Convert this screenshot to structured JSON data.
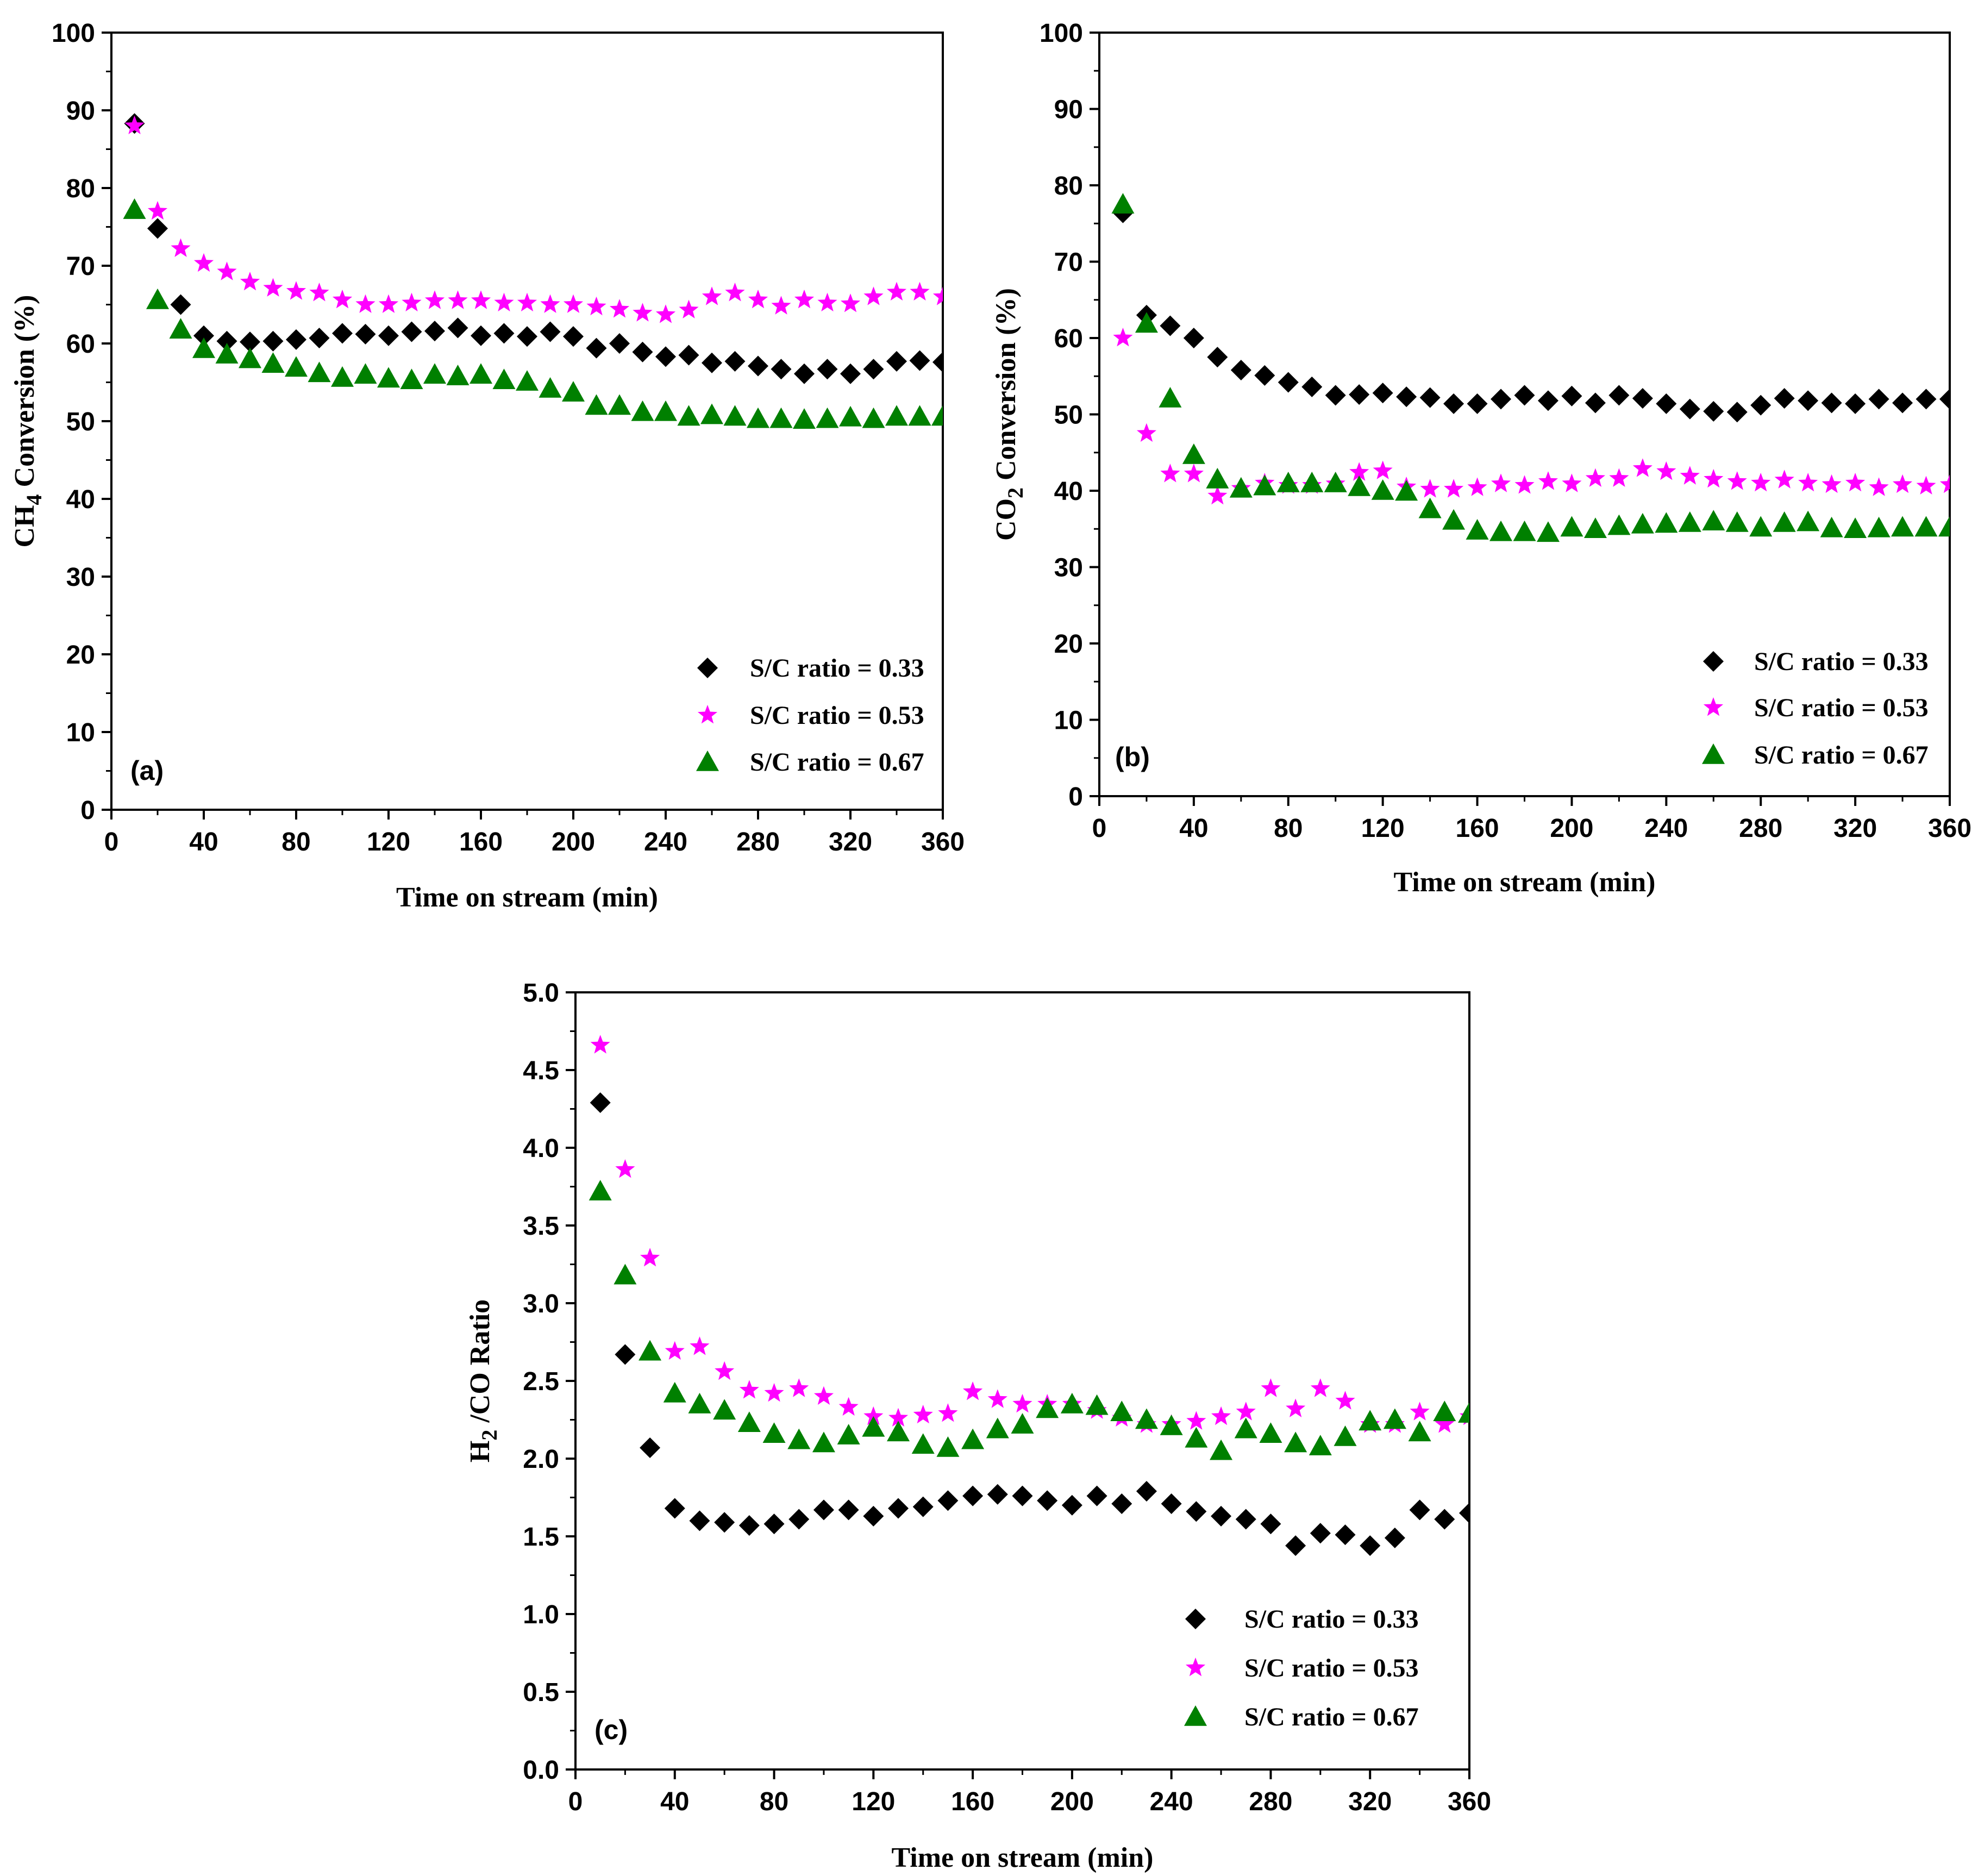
{
  "colors": {
    "series_033": "#000000",
    "series_053": "#ff00ff",
    "series_067": "#008000"
  },
  "chart_data": [
    {
      "type": "scatter",
      "panel_label": "(a)",
      "xlabel": "Time on stream (min)",
      "ylabel_parts": [
        "CH",
        "4",
        " Conversion (%)"
      ],
      "xlim": [
        0,
        360
      ],
      "ylim": [
        0,
        100
      ],
      "xticks": [
        0,
        40,
        80,
        120,
        160,
        200,
        240,
        280,
        320,
        360
      ],
      "xtick_labels": [
        "0",
        "40",
        "80",
        "120",
        "160",
        "200",
        "240",
        "280",
        "320",
        "360"
      ],
      "yticks": [
        0,
        10,
        20,
        30,
        40,
        50,
        60,
        70,
        80,
        90,
        100
      ],
      "ytick_labels": [
        "0",
        "10",
        "20",
        "30",
        "40",
        "50",
        "60",
        "70",
        "80",
        "90",
        "100"
      ],
      "legend_position": "bottom-right",
      "x": [
        10,
        20,
        30,
        40,
        50,
        60,
        70,
        80,
        90,
        100,
        110,
        120,
        130,
        140,
        150,
        160,
        170,
        180,
        190,
        200,
        210,
        220,
        230,
        240,
        250,
        260,
        270,
        280,
        290,
        300,
        310,
        320,
        330,
        340,
        350,
        360
      ],
      "series": [
        {
          "name": "S/C ratio = 0.33",
          "marker": "diamond",
          "values": [
            88.3,
            74.8,
            65.0,
            61.0,
            60.3,
            60.2,
            60.3,
            60.5,
            60.7,
            61.3,
            61.2,
            61.0,
            61.5,
            61.6,
            62.0,
            61.0,
            61.3,
            60.9,
            61.5,
            60.9,
            59.4,
            60.0,
            58.9,
            58.3,
            58.5,
            57.5,
            57.7,
            57.1,
            56.7,
            56.1,
            56.7,
            56.1,
            56.7,
            57.7,
            57.8,
            57.6
          ]
        },
        {
          "name": "S/C ratio = 0.53",
          "marker": "star",
          "values": [
            88.0,
            77.0,
            72.2,
            70.3,
            69.2,
            67.9,
            67.1,
            66.7,
            66.5,
            65.6,
            65.0,
            65.0,
            65.2,
            65.5,
            65.5,
            65.5,
            65.2,
            65.2,
            65.0,
            65.0,
            64.7,
            64.4,
            63.9,
            63.7,
            64.3,
            66.0,
            66.5,
            65.6,
            64.8,
            65.6,
            65.2,
            65.1,
            66.0,
            66.6,
            66.6,
            66.0
          ]
        },
        {
          "name": "S/C ratio = 0.67",
          "marker": "triangle",
          "values": [
            77.2,
            65.6,
            61.8,
            59.3,
            58.6,
            58.0,
            57.4,
            56.9,
            56.2,
            55.6,
            56.0,
            55.5,
            55.3,
            56.0,
            55.8,
            56.0,
            55.3,
            55.1,
            54.2,
            53.7,
            52.0,
            52.0,
            51.2,
            51.2,
            50.6,
            50.8,
            50.6,
            50.3,
            50.3,
            50.2,
            50.3,
            50.5,
            50.3,
            50.6,
            50.6,
            50.6
          ]
        }
      ]
    },
    {
      "type": "scatter",
      "panel_label": "(b)",
      "xlabel": "Time on stream (min)",
      "ylabel_parts": [
        "CO",
        "2",
        " Conversion (%)"
      ],
      "xlim": [
        0,
        360
      ],
      "ylim": [
        0,
        100
      ],
      "xticks": [
        0,
        40,
        80,
        120,
        160,
        200,
        240,
        280,
        320,
        360
      ],
      "xtick_labels": [
        "0",
        "40",
        "80",
        "120",
        "160",
        "200",
        "240",
        "280",
        "320",
        "360"
      ],
      "yticks": [
        0,
        10,
        20,
        30,
        40,
        50,
        60,
        70,
        80,
        90,
        100
      ],
      "ytick_labels": [
        "0",
        "10",
        "20",
        "30",
        "40",
        "50",
        "60",
        "70",
        "80",
        "90",
        "100"
      ],
      "legend_position": "bottom-right",
      "x": [
        10,
        20,
        30,
        40,
        50,
        60,
        70,
        80,
        90,
        100,
        110,
        120,
        130,
        140,
        150,
        160,
        170,
        180,
        190,
        200,
        210,
        220,
        230,
        240,
        250,
        260,
        270,
        280,
        290,
        300,
        310,
        320,
        330,
        340,
        350,
        360
      ],
      "series": [
        {
          "name": "S/C ratio = 0.33",
          "marker": "diamond",
          "values": [
            76.4,
            63.0,
            61.6,
            60.0,
            57.5,
            55.8,
            55.1,
            54.2,
            53.6,
            52.5,
            52.6,
            52.8,
            52.3,
            52.2,
            51.4,
            51.4,
            52.0,
            52.5,
            51.8,
            52.4,
            51.5,
            52.5,
            52.1,
            51.4,
            50.7,
            50.4,
            50.3,
            51.2,
            52.1,
            51.8,
            51.5,
            51.4,
            52.0,
            51.5,
            52.0,
            52.0
          ]
        },
        {
          "name": "S/C ratio = 0.53",
          "marker": "star",
          "values": [
            60.0,
            47.5,
            42.2,
            42.2,
            39.3,
            40.3,
            41.0,
            40.7,
            40.7,
            40.9,
            42.4,
            42.6,
            40.5,
            40.2,
            40.2,
            40.4,
            40.9,
            40.7,
            41.2,
            40.9,
            41.6,
            41.6,
            42.9,
            42.5,
            41.9,
            41.5,
            41.2,
            41.0,
            41.4,
            41.0,
            40.8,
            41.0,
            40.4,
            40.8,
            40.6,
            40.8
          ]
        },
        {
          "name": "S/C ratio = 0.67",
          "marker": "triangle",
          "values": [
            77.5,
            61.9,
            52.1,
            44.7,
            41.5,
            40.3,
            40.6,
            41.0,
            41.0,
            41.0,
            40.5,
            40.0,
            39.9,
            37.6,
            36.1,
            34.8,
            34.6,
            34.6,
            34.5,
            35.2,
            35.0,
            35.4,
            35.6,
            35.7,
            35.8,
            36.0,
            35.8,
            35.2,
            35.8,
            35.9,
            35.1,
            35.0,
            35.1,
            35.2,
            35.2,
            35.2
          ]
        }
      ]
    },
    {
      "type": "scatter",
      "panel_label": "(c)",
      "xlabel": "Time on stream (min)",
      "ylabel_parts": [
        "H",
        "2",
        " /CO Ratio"
      ],
      "xlim": [
        0,
        360
      ],
      "ylim": [
        0,
        5
      ],
      "xticks": [
        0,
        40,
        80,
        120,
        160,
        200,
        240,
        280,
        320,
        360
      ],
      "xtick_labels": [
        "0",
        "40",
        "80",
        "120",
        "160",
        "200",
        "240",
        "280",
        "320",
        "360"
      ],
      "yticks": [
        0,
        0.5,
        1,
        1.5,
        2,
        2.5,
        3,
        3.5,
        4,
        4.5,
        5
      ],
      "ytick_labels": [
        "0.0",
        "0.5",
        "1.0",
        "1.5",
        "2.0",
        "2.5",
        "3.0",
        "3.5",
        "4.0",
        "4.5",
        "5.0"
      ],
      "legend_position": "bottom-right",
      "x": [
        10,
        20,
        30,
        40,
        50,
        60,
        70,
        80,
        90,
        100,
        110,
        120,
        130,
        140,
        150,
        160,
        170,
        180,
        190,
        200,
        210,
        220,
        230,
        240,
        250,
        260,
        270,
        280,
        290,
        300,
        310,
        320,
        330,
        340,
        350,
        360
      ],
      "series": [
        {
          "name": "S/C ratio = 0.33",
          "marker": "diamond",
          "values": [
            4.29,
            2.67,
            2.07,
            1.68,
            1.6,
            1.59,
            1.57,
            1.58,
            1.61,
            1.67,
            1.67,
            1.63,
            1.68,
            1.69,
            1.73,
            1.76,
            1.77,
            1.76,
            1.73,
            1.7,
            1.76,
            1.71,
            1.79,
            1.71,
            1.66,
            1.63,
            1.61,
            1.58,
            1.44,
            1.52,
            1.51,
            1.44,
            1.49,
            1.67,
            1.61,
            1.65
          ]
        },
        {
          "name": "S/C ratio = 0.53",
          "marker": "star",
          "values": [
            4.66,
            3.86,
            3.29,
            2.69,
            2.72,
            2.56,
            2.44,
            2.42,
            2.45,
            2.4,
            2.33,
            2.27,
            2.26,
            2.28,
            2.29,
            2.43,
            2.38,
            2.35,
            2.35,
            2.35,
            2.31,
            2.26,
            2.22,
            2.22,
            2.24,
            2.27,
            2.3,
            2.45,
            2.32,
            2.45,
            2.37,
            2.22,
            2.22,
            2.3,
            2.22,
            2.27
          ]
        },
        {
          "name": "S/C ratio = 0.67",
          "marker": "triangle",
          "values": [
            3.72,
            3.18,
            2.69,
            2.42,
            2.35,
            2.31,
            2.23,
            2.16,
            2.12,
            2.1,
            2.15,
            2.2,
            2.17,
            2.09,
            2.07,
            2.12,
            2.19,
            2.22,
            2.32,
            2.35,
            2.34,
            2.3,
            2.25,
            2.21,
            2.13,
            2.05,
            2.19,
            2.16,
            2.1,
            2.08,
            2.14,
            2.24,
            2.25,
            2.17,
            2.3,
            2.29
          ]
        }
      ]
    }
  ]
}
